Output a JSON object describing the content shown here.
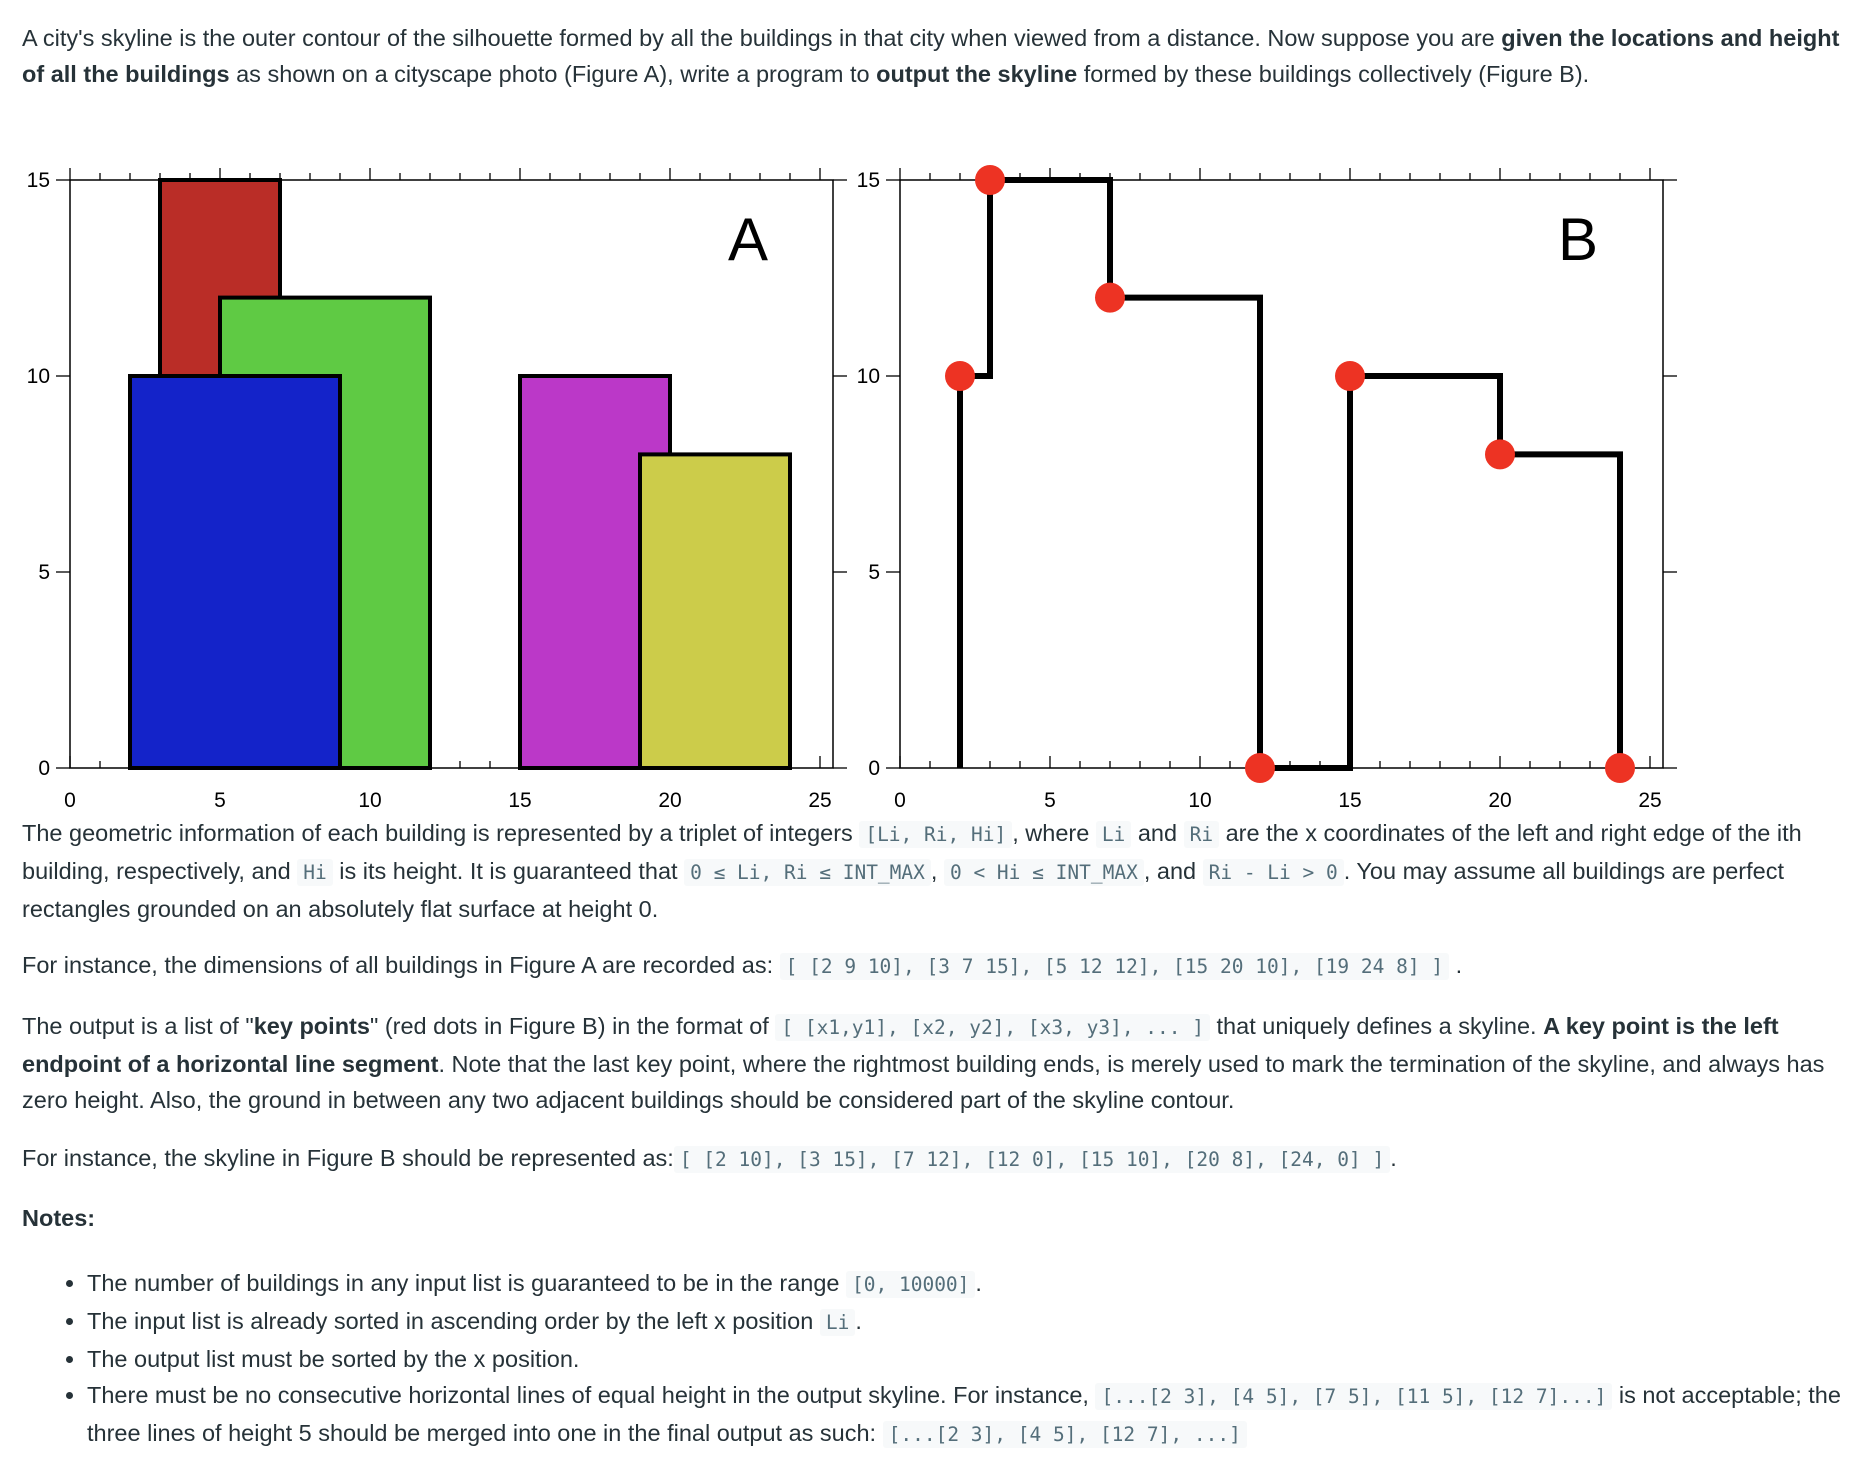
{
  "intro": {
    "t1": "A city's skyline is the outer contour of the silhouette formed by all the buildings in that city when viewed from a distance. Now suppose you are ",
    "b1": "given the locations and height of all the buildings",
    "t2": " as shown on a cityscape photo (Figure A), write a program to ",
    "b2": "output the skyline",
    "t3": " formed by these buildings collectively (Figure B)."
  },
  "chart_data": [
    {
      "type": "bar",
      "title": "A",
      "xlim": [
        0,
        25.5
      ],
      "ylim": [
        0,
        15
      ],
      "x_ticks": [
        0,
        5,
        10,
        15,
        20,
        25
      ],
      "y_ticks": [
        0,
        5,
        10,
        15
      ],
      "buildings": [
        {
          "L": 3,
          "R": 7,
          "H": 15,
          "color": "#ba2d27"
        },
        {
          "L": 5,
          "R": 12,
          "H": 12,
          "color": "#5fca44"
        },
        {
          "L": 2,
          "R": 9,
          "H": 10,
          "color": "#1423c9"
        },
        {
          "L": 15,
          "R": 20,
          "H": 10,
          "color": "#bb38c8"
        },
        {
          "L": 19,
          "R": 24,
          "H": 8,
          "color": "#cccc4a"
        }
      ]
    },
    {
      "type": "line",
      "title": "B",
      "xlim": [
        0,
        25.5
      ],
      "ylim": [
        0,
        15
      ],
      "x_ticks": [
        0,
        5,
        10,
        15,
        20,
        25
      ],
      "y_ticks": [
        0,
        5,
        10,
        15
      ],
      "line_color": "#000000",
      "point_color": "#ed3323",
      "key_points": [
        [
          2,
          10
        ],
        [
          3,
          15
        ],
        [
          7,
          12
        ],
        [
          12,
          0
        ],
        [
          15,
          10
        ],
        [
          20,
          8
        ],
        [
          24,
          0
        ]
      ]
    }
  ],
  "p1": {
    "t1": "The geometric information of each building is represented by a triplet of integers ",
    "c1": "[Li, Ri, Hi]",
    "t2": ", where ",
    "c2": "Li",
    "t3": " and ",
    "c3": "Ri",
    "t4": " are the x coordinates of the left and right edge of the ith building, respectively, and ",
    "c4": "Hi",
    "t5": " is its height. It is guaranteed that ",
    "c5": "0 ≤ Li, Ri ≤ INT_MAX",
    "t6": ", ",
    "c6": "0 < Hi ≤ INT_MAX",
    "t7": ", and ",
    "c7": "Ri - Li > 0",
    "t8": ". You may assume all buildings are perfect rectangles grounded on an absolutely flat surface at height 0."
  },
  "p2": {
    "t1": "For instance, the dimensions of all buildings in Figure A are recorded as: ",
    "c1": "[ [2 9 10], [3 7 15], [5 12 12], [15 20 10], [19 24 8] ]",
    "t2": " ."
  },
  "p3": {
    "t1": "The output is a list of \"",
    "b1": "key points",
    "t2": "\" (red dots in Figure B) in the format of ",
    "c1": "[ [x1,y1], [x2, y2], [x3, y3], ... ]",
    "t3": " that uniquely defines a skyline. ",
    "b2": "A key point is the left endpoint of a horizontal line segment",
    "t4": ". Note that the last key point, where the rightmost building ends, is merely used to mark the termination of the skyline, and always has zero height. Also, the ground in between any two adjacent buildings should be considered part of the skyline contour."
  },
  "p4": {
    "t1": "For instance, the skyline in Figure B should be represented as:",
    "c1": "[ [2 10], [3 15], [7 12], [12 0], [15 10], [20 8], [24, 0] ]",
    "t2": "."
  },
  "notes_title": "Notes:",
  "notes": [
    {
      "t1": "The number of buildings in any input list is guaranteed to be in the range ",
      "c1": "[0, 10000]",
      "t2": "."
    },
    {
      "t1": "The input list is already sorted in ascending order by the left x position ",
      "c1": "Li",
      "t2": "."
    },
    {
      "t1": "The output list must be sorted by the x position."
    },
    {
      "t1": "There must be no consecutive horizontal lines of equal height in the output skyline. For instance, ",
      "c1": "[...[2 3], [4 5], [7 5], [11 5], [12 7]...]",
      "t2": " is not acceptable; the three lines of height 5 should be merged into one in the final output as such: ",
      "c2": "[...[2 3], [4 5], [12 7], ...]"
    }
  ]
}
